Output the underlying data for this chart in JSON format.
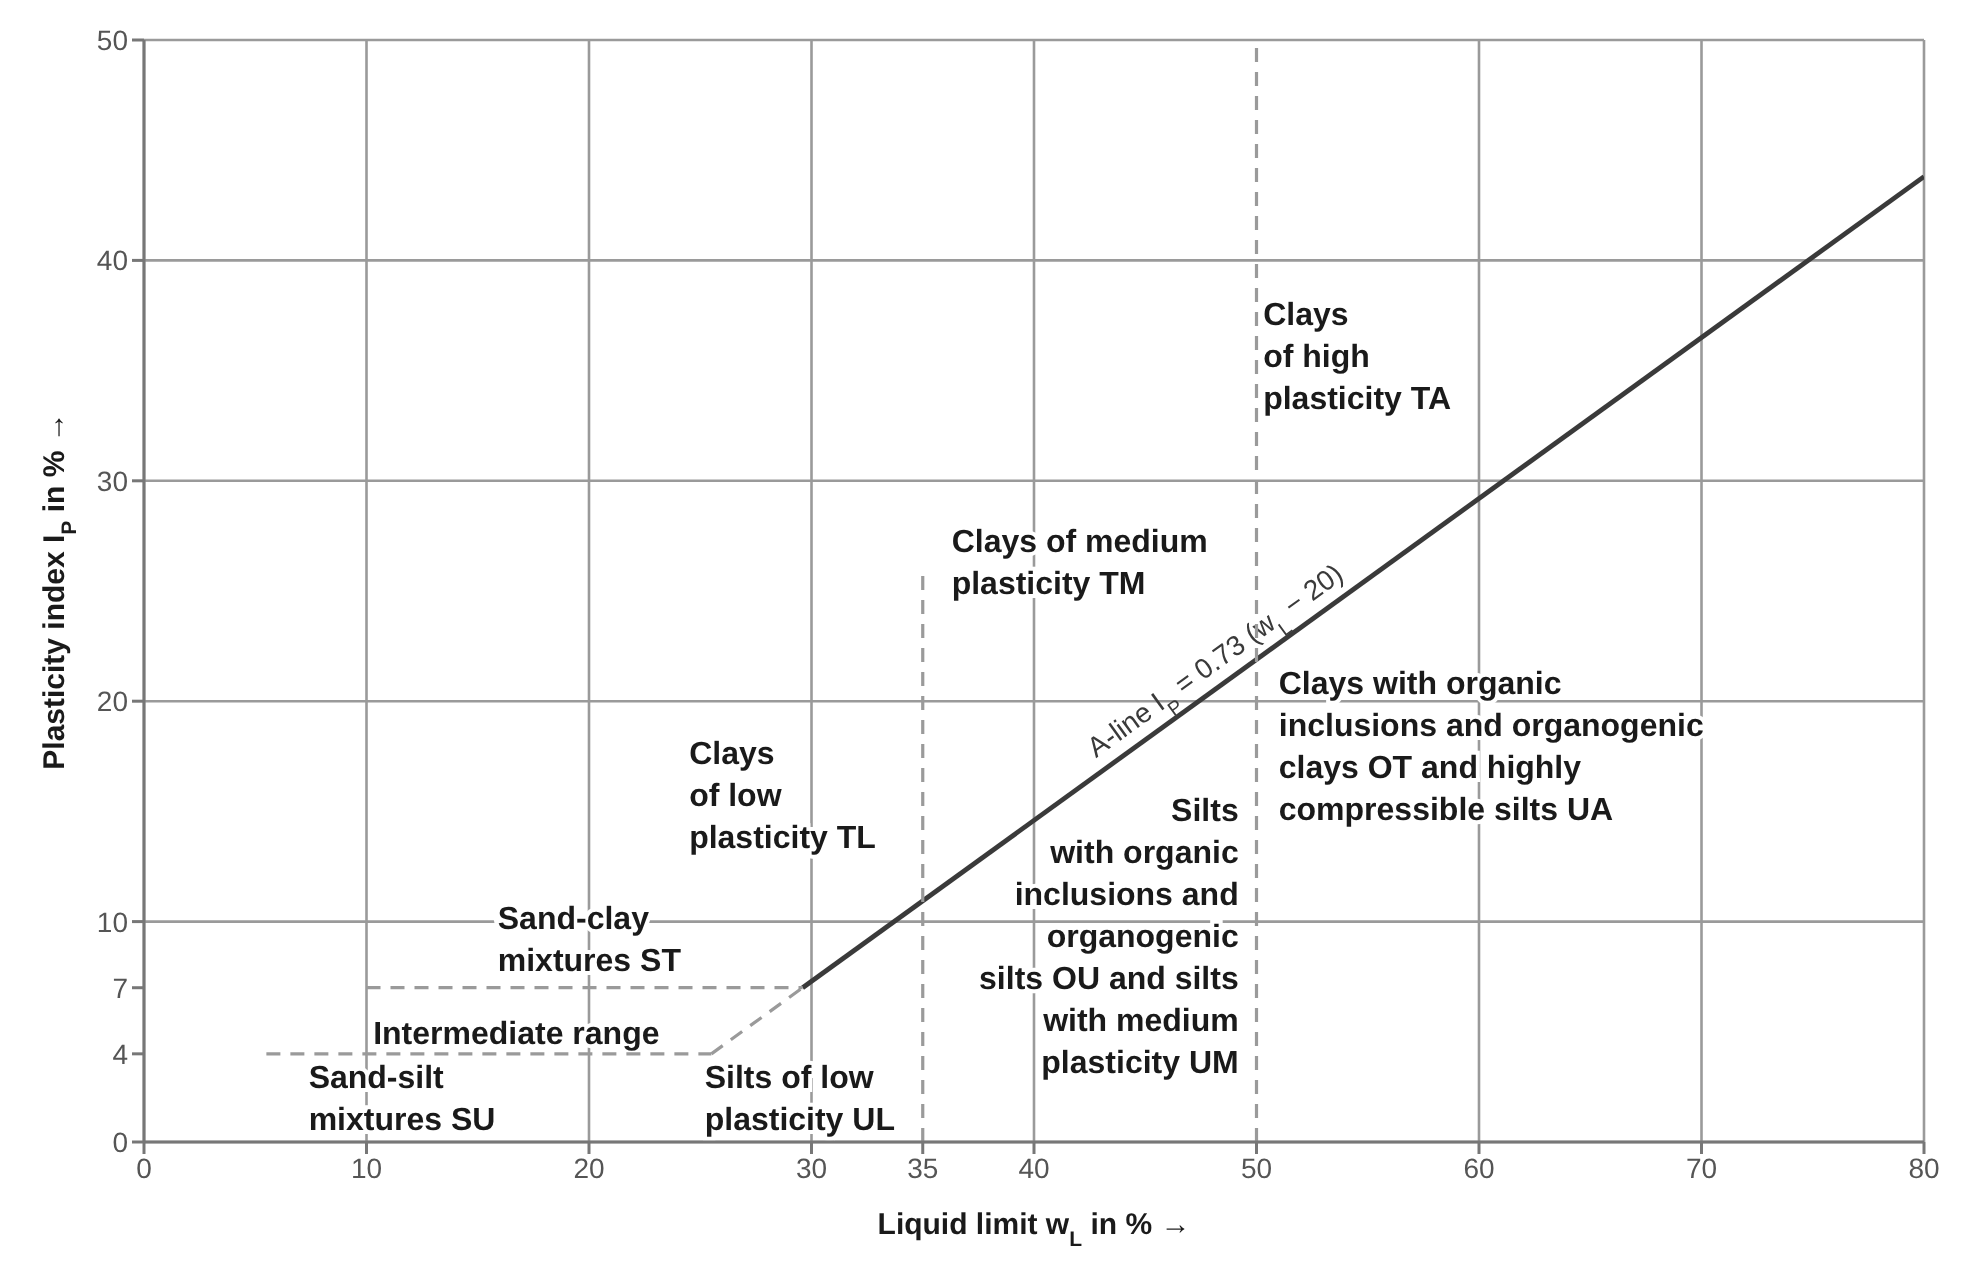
{
  "chart_data": {
    "type": "line",
    "xlabel": "Liquid limit w$_{L}$ in % →",
    "ylabel": "Plasticity index I$_{P}$ in % →",
    "xlim": [
      0,
      80
    ],
    "xticks": [
      0,
      10,
      20,
      30,
      35,
      40,
      50,
      60,
      70,
      80
    ],
    "ylim": [
      0,
      50
    ],
    "yticks": [
      0,
      4,
      7,
      10,
      20,
      30,
      40,
      50
    ],
    "grid": true,
    "legend": false,
    "marker": "none",
    "series": [
      {
        "name": "A-line I$_{P}$ = 0.73 (w$_{L}$ − 20)",
        "color": "#3a3a3a",
        "line_style": "solid",
        "x": [
          29.6,
          80
        ],
        "values": [
          7,
          43.8
        ]
      },
      {
        "color": "#9a9a9a",
        "line_style": "dashed",
        "x": [
          10,
          29.6
        ],
        "values": [
          7,
          7
        ]
      },
      {
        "color": "#9a9a9a",
        "line_style": "dashed",
        "x": [
          5.5,
          25.5
        ],
        "values": [
          4,
          4
        ]
      },
      {
        "color": "#9a9a9a",
        "line_style": "dashed",
        "x": [
          25.5,
          29.6
        ],
        "values": [
          4,
          7
        ]
      },
      {
        "color": "#9a9a9a",
        "line_style": "dashed",
        "x": [
          35,
          35
        ],
        "values": [
          0,
          26
        ]
      },
      {
        "color": "#9a9a9a",
        "line_style": "dashed",
        "x": [
          50,
          50
        ],
        "values": [
          0,
          50
        ]
      }
    ],
    "annotations": [
      "Clays\nof high\nplasticity TA",
      "Clays of medium\nplasticity TM",
      "Clays with organic\ninclusions and organogenic\nclays OT and highly\ncompressible silts UA",
      "Silts\nwith organic\ninclusions and\norganogenic\nsilts OU and silts\nwith medium\nplasticity UM",
      "Clays\nof low\nplasticity TL",
      "Sand-clay\nmixtures ST",
      "Intermediate range",
      "Sand-silt\nmixtures SU",
      "Silts of low\nplasticity UL"
    ]
  }
}
